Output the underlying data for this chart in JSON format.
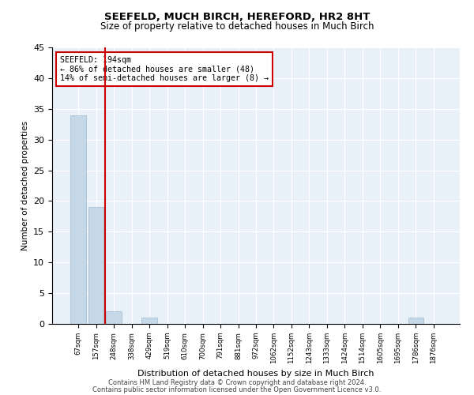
{
  "title1": "SEEFELD, MUCH BIRCH, HEREFORD, HR2 8HT",
  "title2": "Size of property relative to detached houses in Much Birch",
  "xlabel": "Distribution of detached houses by size in Much Birch",
  "ylabel": "Number of detached properties",
  "categories": [
    "67sqm",
    "157sqm",
    "248sqm",
    "338sqm",
    "429sqm",
    "519sqm",
    "610sqm",
    "700sqm",
    "791sqm",
    "881sqm",
    "972sqm",
    "1062sqm",
    "1152sqm",
    "1243sqm",
    "1333sqm",
    "1424sqm",
    "1514sqm",
    "1605sqm",
    "1695sqm",
    "1786sqm",
    "1876sqm"
  ],
  "values": [
    34,
    19,
    2,
    0,
    1,
    0,
    0,
    0,
    0,
    0,
    0,
    0,
    0,
    0,
    0,
    0,
    0,
    0,
    0,
    1,
    0
  ],
  "bar_color": "#c5d8e8",
  "bar_edge_color": "#a0b8cc",
  "vline_color": "#cc0000",
  "annotation_text": "SEEFELD: 194sqm\n← 86% of detached houses are smaller (48)\n14% of semi-detached houses are larger (8) →",
  "annotation_box_color": "#ffffff",
  "annotation_box_edge": "#cc0000",
  "ylim": [
    0,
    45
  ],
  "yticks": [
    0,
    5,
    10,
    15,
    20,
    25,
    30,
    35,
    40,
    45
  ],
  "footer1": "Contains HM Land Registry data © Crown copyright and database right 2024.",
  "footer2": "Contains public sector information licensed under the Open Government Licence v3.0.",
  "bg_color": "#e8f0f8",
  "fig_bg_color": "#ffffff"
}
